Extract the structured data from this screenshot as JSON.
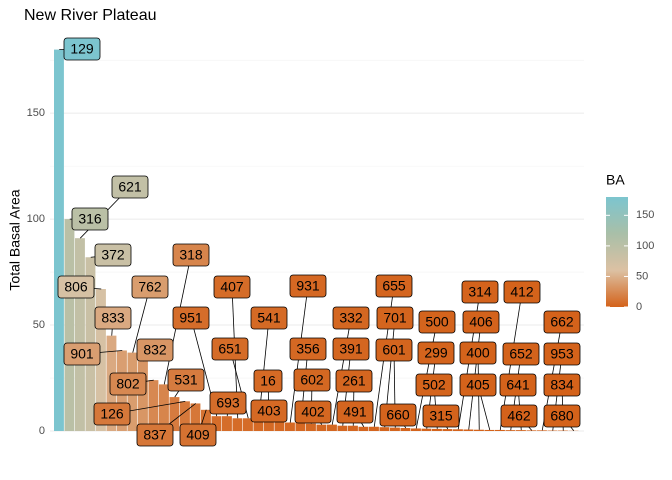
{
  "chart_data": {
    "type": "bar",
    "title": "New River Plateau",
    "y_label": "Total Basal Area",
    "categories": [
      "129",
      "316",
      "621",
      "372",
      "806",
      "833",
      "901",
      "762",
      "832",
      "802",
      "318",
      "531",
      "126",
      "837",
      "409",
      "951",
      "693",
      "407",
      "651",
      "541",
      "16",
      "403",
      "931",
      "356",
      "602",
      "402",
      "332",
      "391",
      "261",
      "491",
      "655",
      "701",
      "601",
      "660",
      "500",
      "299",
      "502",
      "315",
      "314",
      "406",
      "400",
      "405",
      "412",
      "652",
      "641",
      "462",
      "662",
      "953",
      "834",
      "680"
    ],
    "values": [
      180,
      100,
      91,
      82,
      67,
      45,
      38,
      37,
      33,
      24,
      22,
      16,
      14,
      13,
      10,
      7,
      7,
      6,
      6,
      5,
      5,
      4.5,
      4,
      4,
      3.5,
      3,
      3,
      2.5,
      2.5,
      2,
      2,
      1.8,
      1.6,
      1.4,
      1.2,
      1.1,
      1,
      0.9,
      0.8,
      0.7,
      0.6,
      0.5,
      0.5,
      0.4,
      0.4,
      0.3,
      0.3,
      0.2,
      0.2,
      0.1
    ],
    "ylim": [
      0,
      185
    ],
    "yticks": [
      0,
      50,
      100,
      150
    ],
    "grid": true,
    "color_scale": {
      "title": "BA",
      "lim": [
        0,
        180
      ],
      "ticks": [
        0,
        50,
        100,
        150
      ],
      "colors": [
        "#d4621a",
        "#dcc1a3",
        "#a9bfa8",
        "#7cc5cf"
      ]
    }
  }
}
